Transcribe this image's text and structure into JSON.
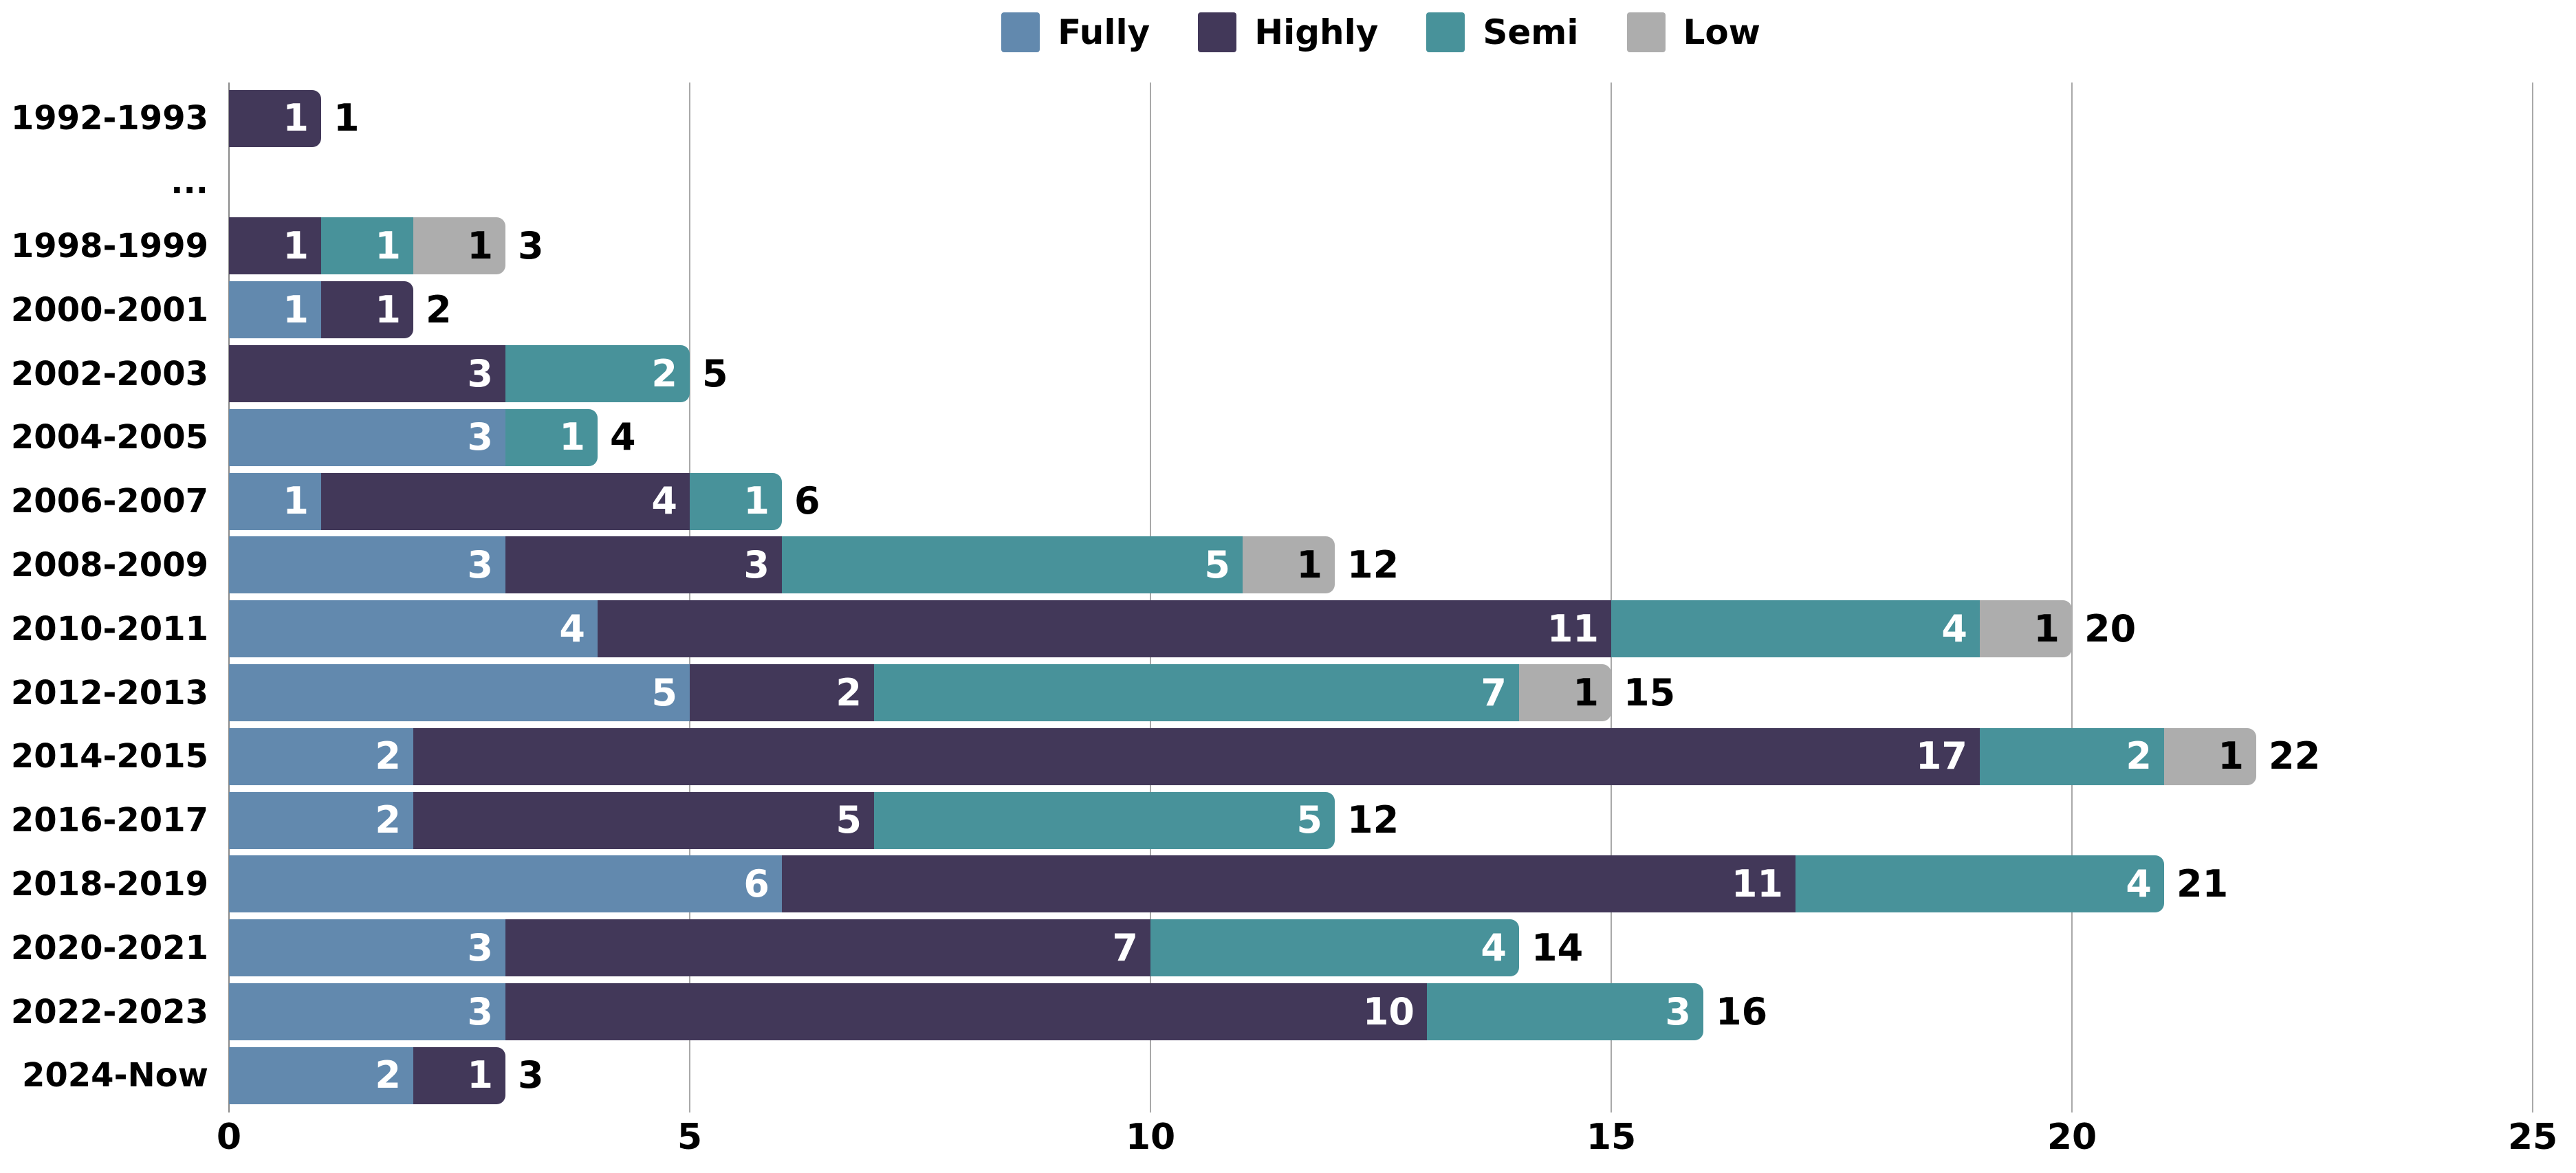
{
  "chart_data": {
    "type": "bar",
    "orientation": "horizontal",
    "stacked": true,
    "title": "",
    "xlabel": "",
    "ylabel": "",
    "grid": true,
    "legend_position": "top",
    "xlim": [
      0,
      25
    ],
    "x_ticks": [
      "0",
      "5",
      "10",
      "15",
      "20",
      "25"
    ],
    "x_tick_values": [
      0,
      5,
      10,
      15,
      20,
      25
    ],
    "categories": [
      "1992-1993",
      "...",
      "1998-1999",
      "2000-2001",
      "2002-2003",
      "2004-2005",
      "2006-2007",
      "2008-2009",
      "2010-2011",
      "2012-2013",
      "2014-2015",
      "2016-2017",
      "2018-2019",
      "2020-2021",
      "2022-2023",
      "2024-Now"
    ],
    "series": [
      {
        "name": "Fully",
        "color": "#6289AE",
        "label_color": "#ffffff",
        "values": [
          0,
          null,
          0,
          1,
          0,
          3,
          1,
          3,
          4,
          5,
          2,
          2,
          6,
          3,
          3,
          2
        ]
      },
      {
        "name": "Highly",
        "color": "#423859",
        "label_color": "#ffffff",
        "values": [
          1,
          null,
          1,
          1,
          3,
          0,
          4,
          3,
          11,
          2,
          17,
          5,
          11,
          7,
          10,
          1
        ]
      },
      {
        "name": "Semi",
        "color": "#48929A",
        "label_color": "#ffffff",
        "values": [
          0,
          null,
          1,
          0,
          2,
          1,
          1,
          5,
          4,
          7,
          2,
          5,
          4,
          4,
          3,
          0
        ]
      },
      {
        "name": "Low",
        "color": "#ADADAD",
        "label_color": "#000000",
        "values": [
          0,
          null,
          1,
          0,
          0,
          0,
          0,
          1,
          1,
          1,
          1,
          0,
          0,
          0,
          0,
          0
        ]
      }
    ],
    "totals": [
      1,
      null,
      3,
      2,
      5,
      4,
      6,
      12,
      20,
      15,
      22,
      12,
      21,
      14,
      16,
      3
    ],
    "colors": {
      "grid_line": "#a9a9a9",
      "axis_text": "#000000",
      "background": "#ffffff"
    }
  }
}
